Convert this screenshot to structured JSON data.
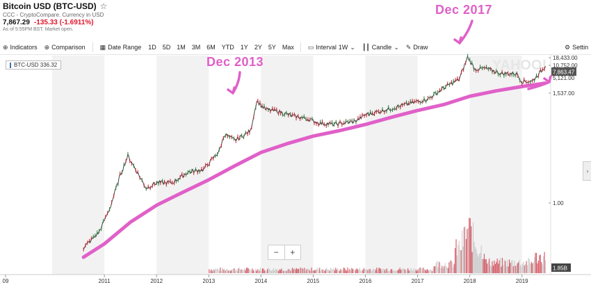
{
  "header": {
    "title": "Bitcoin USD (BTC-USD)",
    "star_icon": "star-icon",
    "source": "CCC - CryptoCompare. Currency in USD",
    "price": "7,867.29",
    "change": "-135.33 (-1.6911%)",
    "market_status": "As of 5:55PM BST. Market open."
  },
  "toolbar": {
    "indicators": "Indicators",
    "comparison": "Comparison",
    "date_range": "Date Range",
    "ranges": [
      "1D",
      "5D",
      "1M",
      "3M",
      "6M",
      "YTD",
      "1Y",
      "2Y",
      "5Y",
      "Max"
    ],
    "interval_label": "Interval",
    "interval_value": "1W",
    "chart_type": "Candle",
    "draw": "Draw",
    "settings": "Settin"
  },
  "ticker_badge": "BTC-USD 336.32",
  "annotations": {
    "left": "Dec 2013",
    "right": "Dec 2017"
  },
  "zoom": {
    "minus": "−",
    "plus": "+"
  },
  "side_tab": "›",
  "watermark": "YAHOO!",
  "colors": {
    "up": "#2a7d3a",
    "down": "#c8202f",
    "annotation": "#e060c8",
    "band": "#f2f2f2",
    "volume": "#bbbbbb",
    "price_tag": "#555555"
  },
  "chart_data": {
    "type": "line",
    "scale": "log",
    "x_ticks": [
      "09",
      "2011",
      "2012",
      "2013",
      "2014",
      "2015",
      "2016",
      "2017",
      "2018",
      "2019"
    ],
    "y_tick_labels": [
      "18,433.00",
      "10,752.00",
      "7,863.47",
      "5,121.00",
      "1,537.00",
      "1.00",
      "1.85B"
    ],
    "price_series": {
      "name": "BTC-USD",
      "x": [
        2010.6,
        2010.9,
        2011.1,
        2011.3,
        2011.45,
        2011.6,
        2011.8,
        2012.0,
        2012.3,
        2012.6,
        2012.9,
        2013.2,
        2013.3,
        2013.5,
        2013.8,
        2013.92,
        2014.0,
        2014.1,
        2014.3,
        2014.6,
        2014.9,
        2015.1,
        2015.4,
        2015.8,
        2016.0,
        2016.5,
        2016.9,
        2017.2,
        2017.5,
        2017.8,
        2017.96,
        2018.1,
        2018.3,
        2018.6,
        2018.9,
        2019.0,
        2019.2,
        2019.45
      ],
      "y": [
        0.07,
        0.2,
        0.9,
        8,
        29,
        12,
        3.5,
        5,
        5,
        10,
        12,
        40,
        120,
        80,
        150,
        1100,
        800,
        600,
        550,
        400,
        330,
        250,
        230,
        280,
        430,
        650,
        950,
        1200,
        2500,
        4500,
        19000,
        8500,
        9000,
        6400,
        6300,
        3800,
        3900,
        10500
      ]
    },
    "trend_series": {
      "x": [
        2010.6,
        2011.0,
        2011.5,
        2012.0,
        2012.5,
        2013.0,
        2013.5,
        2014.0,
        2014.5,
        2015.0,
        2015.5,
        2016.0,
        2016.5,
        2017.0,
        2017.5,
        2018.0,
        2018.5,
        2019.0,
        2019.45
      ],
      "y": [
        0.05,
        0.12,
        0.5,
        1.5,
        3.5,
        8,
        20,
        48,
        85,
        140,
        200,
        300,
        480,
        750,
        1100,
        1900,
        2700,
        3600,
        4500
      ]
    },
    "volume_note": "weekly volume bars, peak 1.85B"
  }
}
